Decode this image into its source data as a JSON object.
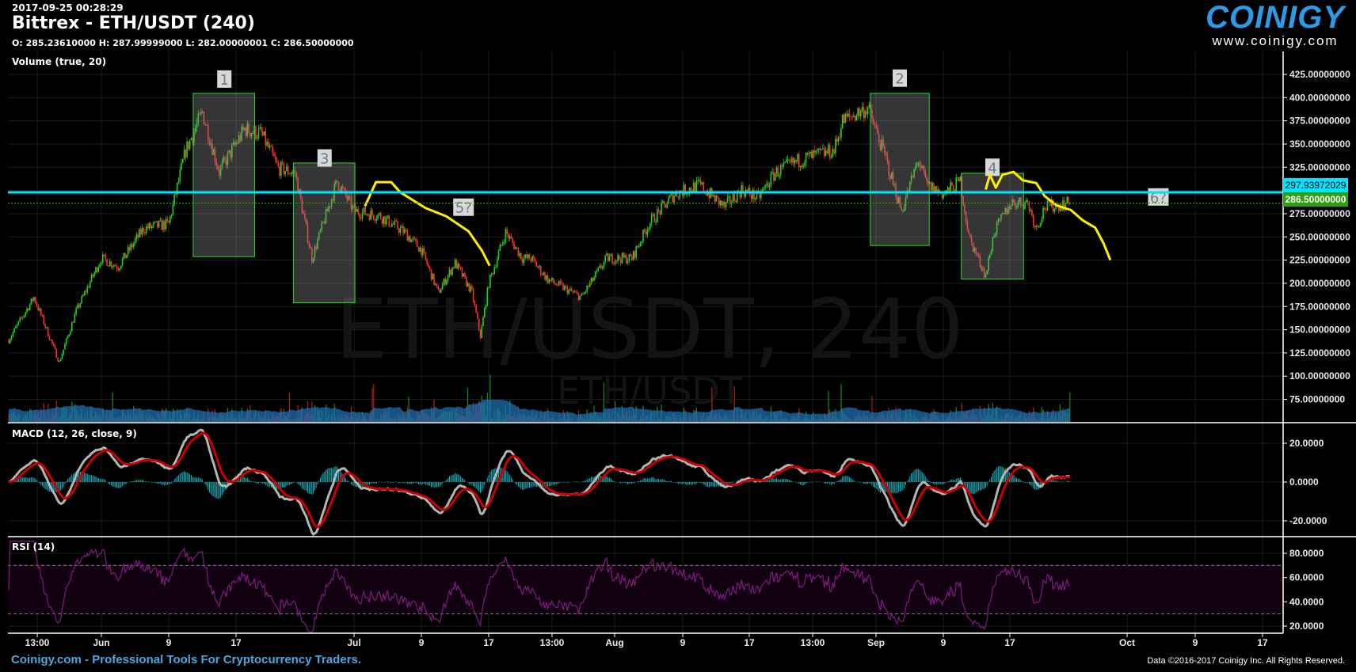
{
  "header": {
    "timestamp": "2017-09-25 00:28:29",
    "title": "Bittrex - ETH/USDT (240)",
    "ohlc": "O: 285.23610000 H: 287.99999000 L: 282.00000001 C: 286.50000000"
  },
  "logo": {
    "brand": "COINIGY",
    "url": "www.coinigy.com"
  },
  "watermark": {
    "main": "ETH/USDT, 240",
    "sub": "ETH/USDT"
  },
  "footer": {
    "left": "Coinigy.com - Professional Tools For Cryptocurrency Traders.",
    "right": "Data ©2016-2017 Coinigy Inc. All Rights Reserved."
  },
  "colors": {
    "up": "#1ed41e",
    "down": "#ff3030",
    "hline": "#00e5ff",
    "last": "#2fa00f",
    "macd": "#b4b4b4",
    "signal": "#cc0000",
    "hist": "#17b5c2",
    "rsi": "#7a1a7a",
    "volume": "#1d6fb0",
    "annotation_box": "#22dd22",
    "annotation_line": "#ffee00"
  },
  "chart_data": [
    {
      "type": "candlestick",
      "title": "Bittrex - ETH/USDT (240)",
      "interval_minutes": 240,
      "yaxis_ticks": [
        "425.00000000",
        "400.00000000",
        "375.00000000",
        "350.00000000",
        "325.00000000",
        "275.00000000",
        "250.00000000",
        "225.00000000",
        "200.00000000",
        "175.00000000",
        "150.00000000",
        "125.00000000",
        "100.00000000",
        "75.00000000"
      ],
      "ylim": [
        50,
        430
      ],
      "xaxis_ticks": [
        "13:00",
        "Jun",
        "9",
        "17",
        "Jul",
        "9",
        "17",
        "13:00",
        "Aug",
        "9",
        "17",
        "13:00",
        "Sep",
        "9",
        "17",
        "Oct",
        "9",
        "17"
      ],
      "horizontal_line": {
        "price": 297.93972029,
        "label": "297.93972029"
      },
      "last_price": {
        "price": 286.5,
        "label": "286.50000000"
      },
      "approx_close_by_date": [
        [
          "2017-05-21",
          139
        ],
        [
          "2017-05-24",
          185
        ],
        [
          "2017-05-27",
          115
        ],
        [
          "2017-05-29",
          170
        ],
        [
          "2017-06-01",
          227
        ],
        [
          "2017-06-03",
          218
        ],
        [
          "2017-06-06",
          259
        ],
        [
          "2017-06-09",
          264
        ],
        [
          "2017-06-11",
          343
        ],
        [
          "2017-06-13",
          384
        ],
        [
          "2017-06-15",
          320
        ],
        [
          "2017-06-18",
          366
        ],
        [
          "2017-06-20",
          361
        ],
        [
          "2017-06-22",
          324
        ],
        [
          "2017-06-24",
          319
        ],
        [
          "2017-06-26",
          227
        ],
        [
          "2017-06-27",
          255
        ],
        [
          "2017-06-29",
          310
        ],
        [
          "2017-07-01",
          278
        ],
        [
          "2017-07-04",
          273
        ],
        [
          "2017-07-07",
          255
        ],
        [
          "2017-07-09",
          236
        ],
        [
          "2017-07-11",
          190
        ],
        [
          "2017-07-13",
          222
        ],
        [
          "2017-07-15",
          190
        ],
        [
          "2017-07-16",
          143
        ],
        [
          "2017-07-17",
          200
        ],
        [
          "2017-07-19",
          255
        ],
        [
          "2017-07-21",
          227
        ],
        [
          "2017-07-22",
          227
        ],
        [
          "2017-07-24",
          204
        ],
        [
          "2017-07-28",
          185
        ],
        [
          "2017-07-31",
          227
        ],
        [
          "2017-08-03",
          227
        ],
        [
          "2017-08-05",
          264
        ],
        [
          "2017-08-08",
          296
        ],
        [
          "2017-08-11",
          306
        ],
        [
          "2017-08-14",
          282
        ],
        [
          "2017-08-16",
          301
        ],
        [
          "2017-08-18",
          292
        ],
        [
          "2017-08-20",
          319
        ],
        [
          "2017-08-23",
          333
        ],
        [
          "2017-08-27",
          343
        ],
        [
          "2017-08-28",
          375
        ],
        [
          "2017-08-31",
          389
        ],
        [
          "2017-09-02",
          338
        ],
        [
          "2017-09-04",
          278
        ],
        [
          "2017-09-06",
          333
        ],
        [
          "2017-09-07",
          306
        ],
        [
          "2017-09-09",
          296
        ],
        [
          "2017-09-11",
          310
        ],
        [
          "2017-09-12",
          250
        ],
        [
          "2017-09-14",
          208
        ],
        [
          "2017-09-15",
          255
        ],
        [
          "2017-09-17",
          287
        ],
        [
          "2017-09-19",
          287
        ],
        [
          "2017-09-20",
          259
        ],
        [
          "2017-09-21",
          282
        ],
        [
          "2017-09-24",
          286.5
        ]
      ],
      "annotations": [
        {
          "label": "1"
        },
        {
          "label": "2"
        },
        {
          "label": "3"
        },
        {
          "label": "4"
        },
        {
          "label": "5?"
        },
        {
          "label": "6?"
        }
      ]
    },
    {
      "type": "bar",
      "title": "Volume (true, 20)"
    },
    {
      "type": "line",
      "title": "MACD (12, 26, close, 9)",
      "yaxis_ticks": [
        "20.0000",
        "0.0000",
        "-20.0000"
      ],
      "ylim": [
        -25,
        25
      ]
    },
    {
      "type": "line",
      "title": "RSI (14)",
      "yaxis_ticks": [
        "80.0000",
        "60.0000",
        "40.0000",
        "20.0000"
      ],
      "ylim": [
        15,
        90
      ],
      "bands": [
        30,
        70
      ]
    }
  ]
}
